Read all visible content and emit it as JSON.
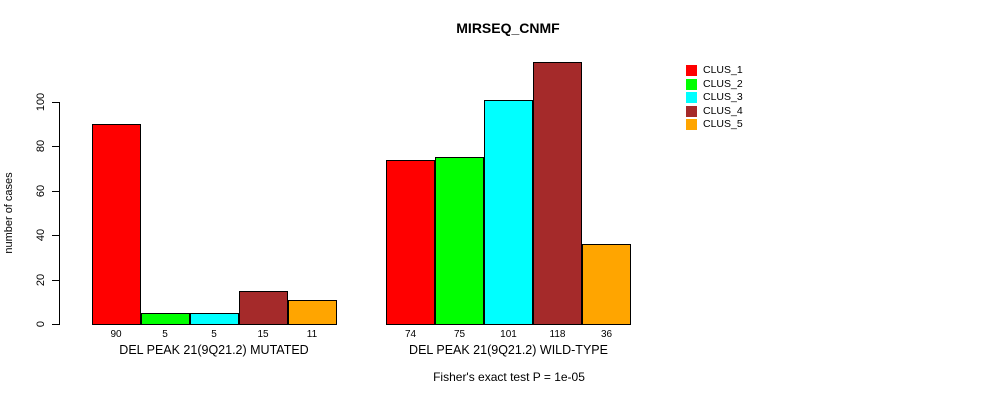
{
  "chart_data": {
    "type": "bar",
    "title": "MIRSEQ_CNMF",
    "ylabel": "number of cases",
    "note": "Fisher's exact test P = 1e-05",
    "yticks": [
      0,
      20,
      40,
      60,
      80,
      100
    ],
    "ylim": [
      0,
      118
    ],
    "grid": false,
    "legend_position": "right",
    "groups": [
      {
        "label": "DEL PEAK 21(9Q21.2) MUTATED",
        "values": [
          90,
          5,
          5,
          15,
          11
        ]
      },
      {
        "label": "DEL PEAK 21(9Q21.2) WILD-TYPE",
        "values": [
          74,
          75,
          101,
          118,
          36
        ]
      }
    ],
    "series": [
      {
        "name": "CLUS_1",
        "color": "#FF0000"
      },
      {
        "name": "CLUS_2",
        "color": "#00FF00"
      },
      {
        "name": "CLUS_3",
        "color": "#00FFFF"
      },
      {
        "name": "CLUS_4",
        "color": "#A52A2A"
      },
      {
        "name": "CLUS_5",
        "color": "#FFA500"
      }
    ]
  }
}
